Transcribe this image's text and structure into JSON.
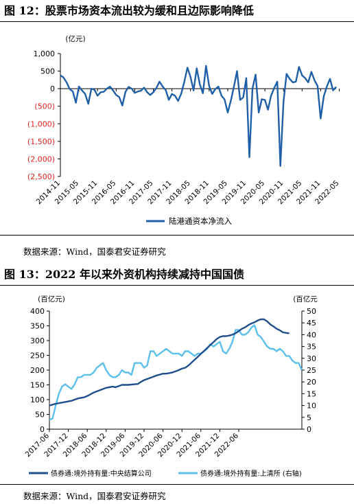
{
  "figure1": {
    "title": "图 12：股票市场资本流出较为缓和且边际影响降低",
    "source": "数据来源：Wind，国泰君安证券研究",
    "unit_label": "(亿元)",
    "legend_label": "陆港通资本净流入",
    "colors": {
      "line": "#1f5fa8",
      "negative_ticks": "#e8201c",
      "positive_ticks": "#000000"
    }
  },
  "figure2": {
    "title": "图 13：2022 年以来外资机构持续减持中国国债",
    "source": "数据来源：Wind，国泰君安证券研究",
    "left_unit_label": "(百亿元)",
    "right_unit_label": "(百亿元",
    "legend_labels": [
      "债券通:境外持有量:中央结算公司",
      "债券通:境外持有量:上清所 (右轴)"
    ],
    "colors": {
      "series1": "#1f4e8c",
      "series2": "#5bc0eb"
    }
  },
  "chart_data": [
    {
      "type": "line",
      "ylim": [
        -2500,
        1000
      ],
      "yticks": [
        1000,
        500,
        0,
        -500,
        -1000,
        -1500,
        -2000,
        -2500
      ],
      "ytick_labels": [
        "1,000",
        "500",
        "0",
        "(500)",
        "(1,000)",
        "(1,500)",
        "(2,000)",
        "(2,500)"
      ],
      "xtick_labels": [
        "2014-11",
        "2015-05",
        "2015-11",
        "2016-05",
        "2016-11",
        "2017-05",
        "2017-11",
        "2018-05",
        "2018-11",
        "2019-05",
        "2019-11",
        "2020-05",
        "2020-11",
        "2021-05",
        "2021-11",
        "2022-05"
      ],
      "series": [
        {
          "name": "陆港通资本净流入",
          "start": "2014-11",
          "values": [
            380,
            320,
            180,
            -10,
            -80,
            -400,
            60,
            -50,
            -150,
            -430,
            0,
            -30,
            -200,
            -100,
            -90,
            0,
            60,
            -50,
            -180,
            -240,
            -480,
            -90,
            50,
            0,
            -120,
            -80,
            -60,
            30,
            -100,
            -180,
            -100,
            20,
            200,
            60,
            -40,
            -320,
            -150,
            -200,
            -350,
            -140,
            200,
            600,
            330,
            -50,
            580,
            120,
            -130,
            650,
            80,
            -150,
            -10,
            60,
            -200,
            -310,
            -680,
            -350,
            50,
            500,
            -320,
            -250,
            300,
            -1950,
            0,
            400,
            -680,
            -300,
            -320,
            -600,
            -200,
            20,
            200,
            -2200,
            -380,
            420,
            280,
            180,
            200,
            620,
            380,
            300,
            180,
            480,
            240,
            80,
            -850,
            -220,
            60,
            280,
            -50,
            50
          ]
        }
      ]
    },
    {
      "type": "line",
      "ylim": [
        0,
        400
      ],
      "y2lim": [
        0,
        50
      ],
      "yticks": [
        0,
        50,
        100,
        150,
        200,
        250,
        300,
        350,
        400
      ],
      "y2ticks": [
        0,
        5,
        10,
        15,
        20,
        25,
        30,
        35,
        40,
        45,
        50
      ],
      "xtick_labels": [
        "2017-06",
        "2017-12",
        "2018-06",
        "2018-12",
        "2019-06",
        "2019-12",
        "2020-06",
        "2020-12",
        "2021-06",
        "2021-12",
        "2022-06"
      ],
      "series": [
        {
          "name": "债券通:境外持有量:中央结算公司",
          "axis": "left",
          "start": "2017-06",
          "values": [
            80,
            83,
            86,
            88,
            90,
            92,
            94,
            96,
            100,
            104,
            106,
            108,
            112,
            118,
            124,
            128,
            132,
            136,
            140,
            142,
            144,
            142,
            146,
            150,
            150,
            150,
            151,
            152,
            153,
            160,
            166,
            170,
            174,
            178,
            182,
            185,
            188,
            188,
            190,
            192,
            196,
            200,
            205,
            208,
            215,
            225,
            235,
            245,
            255,
            265,
            275,
            285,
            295,
            305,
            312,
            315,
            315,
            317,
            320,
            325,
            332,
            340,
            345,
            352,
            358,
            362,
            368,
            372,
            372,
            365,
            355,
            348,
            340,
            335,
            328,
            326,
            325
          ]
        },
        {
          "name": "债券通:境外持有量:上清所 (右轴)",
          "axis": "right",
          "start": "2017-06",
          "values": [
            4,
            4.5,
            10,
            15,
            18,
            19,
            18,
            17,
            19,
            22,
            22,
            23,
            23,
            23,
            24,
            26,
            27,
            28,
            25,
            23,
            22,
            22,
            23,
            25,
            24,
            24,
            23,
            28,
            28,
            28,
            26,
            27,
            33,
            33,
            31,
            32,
            33,
            34,
            33,
            32,
            32,
            32,
            31,
            33,
            33,
            32,
            31,
            32,
            32,
            33,
            34,
            36,
            35,
            36,
            37,
            33,
            32,
            34,
            37,
            42,
            42,
            40,
            40,
            41,
            43,
            44,
            40,
            39,
            37,
            35,
            34,
            34,
            33,
            34,
            33,
            31,
            31,
            29,
            28,
            28,
            25
          ]
        }
      ]
    }
  ]
}
